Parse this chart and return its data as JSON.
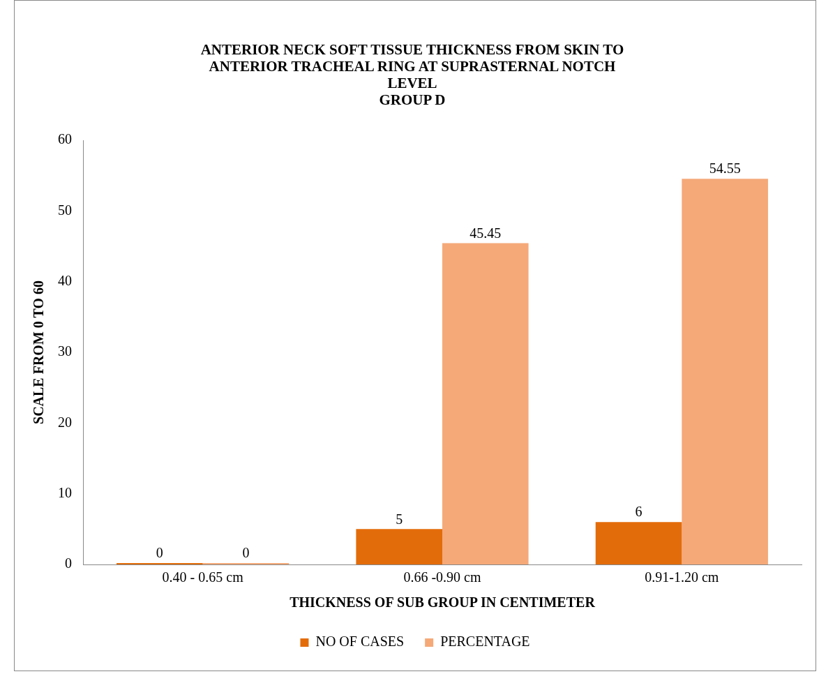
{
  "chart_data": {
    "type": "bar",
    "title": "ANTERIOR NECK SOFT TISSUE THICKNESS FROM SKIN TO ANTERIOR TRACHEAL RING AT SUPRASTERNAL NOTCH LEVEL",
    "subtitle": "GROUP D",
    "xlabel": "THICKNESS OF SUB GROUP IN CENTIMETER",
    "ylabel": "SCALE FROM 0 TO 60",
    "categories": [
      "0.40 - 0.65 cm",
      "0.66 -0.90 cm",
      "0.91-1.20 cm"
    ],
    "series": [
      {
        "name": "NO OF CASES",
        "color": "#e36c0a",
        "values": [
          0,
          5,
          6
        ]
      },
      {
        "name": "PERCENTAGE",
        "color": "#f5a978",
        "values": [
          0,
          45.45,
          54.55
        ]
      }
    ],
    "ylim": [
      0,
      60
    ],
    "yticks": [
      0,
      10,
      20,
      30,
      40,
      50,
      60
    ],
    "grid": false,
    "legend": "bottom",
    "data_labels": true
  }
}
